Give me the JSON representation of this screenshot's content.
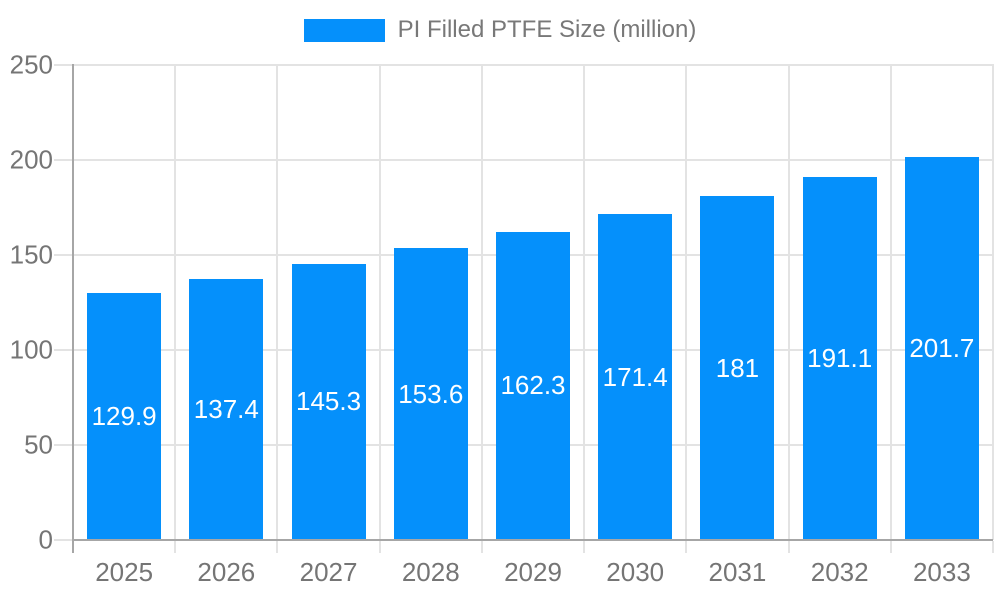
{
  "legend": {
    "label": "PI Filled PTFE Size (million)"
  },
  "chart_data": {
    "type": "bar",
    "title": "",
    "xlabel": "",
    "ylabel": "",
    "series_name": "PI Filled PTFE Size (million)",
    "categories": [
      "2025",
      "2026",
      "2027",
      "2028",
      "2029",
      "2030",
      "2031",
      "2032",
      "2033"
    ],
    "values": [
      129.9,
      137.4,
      145.3,
      153.6,
      162.3,
      171.4,
      181,
      191.1,
      201.7
    ],
    "value_labels": [
      "129.9",
      "137.4",
      "145.3",
      "153.6",
      "162.3",
      "171.4",
      "181",
      "191.1",
      "201.7"
    ],
    "ylim": [
      0,
      250
    ],
    "yticks": [
      0,
      50,
      100,
      150,
      200,
      250
    ],
    "ytick_labels": [
      "0",
      "50",
      "100",
      "150",
      "200",
      "250"
    ],
    "grid": true,
    "legend_position": "top-center",
    "colors": {
      "bar": "#0590fb",
      "axis_line": "#a6a6a6",
      "gridline": "#e3e3e3",
      "axis_label": "#757575",
      "legend_text": "#787878",
      "value_label": "#ffffff",
      "background": "#ffffff"
    }
  }
}
